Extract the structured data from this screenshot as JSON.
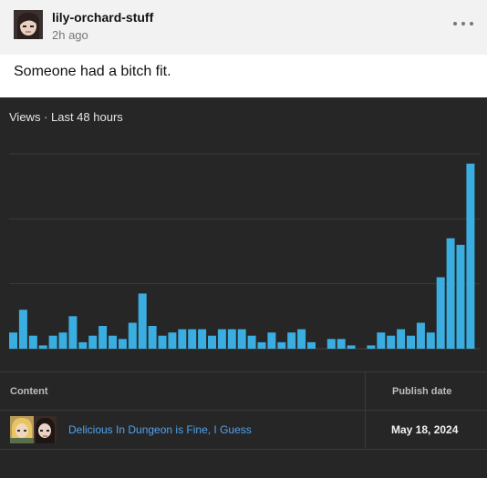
{
  "post": {
    "username": "lily-orchard-stuff",
    "time": "2h ago",
    "text": "Someone had a bitch fit."
  },
  "analytics": {
    "title": "Views · Last 48 hours",
    "table": {
      "headers": {
        "content": "Content",
        "publish_date": "Publish date"
      },
      "rows": [
        {
          "title": "Delicious In Dungeon is Fine, I Guess",
          "date": "May 18, 2024"
        }
      ]
    }
  },
  "colors": {
    "bar": "#3aaee0",
    "link": "#4fa3f0",
    "panel": "#262626"
  },
  "chart_data": {
    "type": "bar",
    "title": "Views · Last 48 hours",
    "grid": true,
    "values": [
      5,
      12,
      4,
      1,
      4,
      5,
      10,
      2,
      4,
      7,
      4,
      3,
      8,
      17,
      7,
      4,
      5,
      6,
      6,
      6,
      4,
      6,
      6,
      6,
      4,
      2,
      5,
      2,
      5,
      6,
      2,
      0,
      3,
      3,
      1,
      0,
      1,
      5,
      4,
      6,
      4,
      8,
      5,
      22,
      34,
      32,
      57
    ],
    "ylim": [
      0,
      60
    ]
  }
}
